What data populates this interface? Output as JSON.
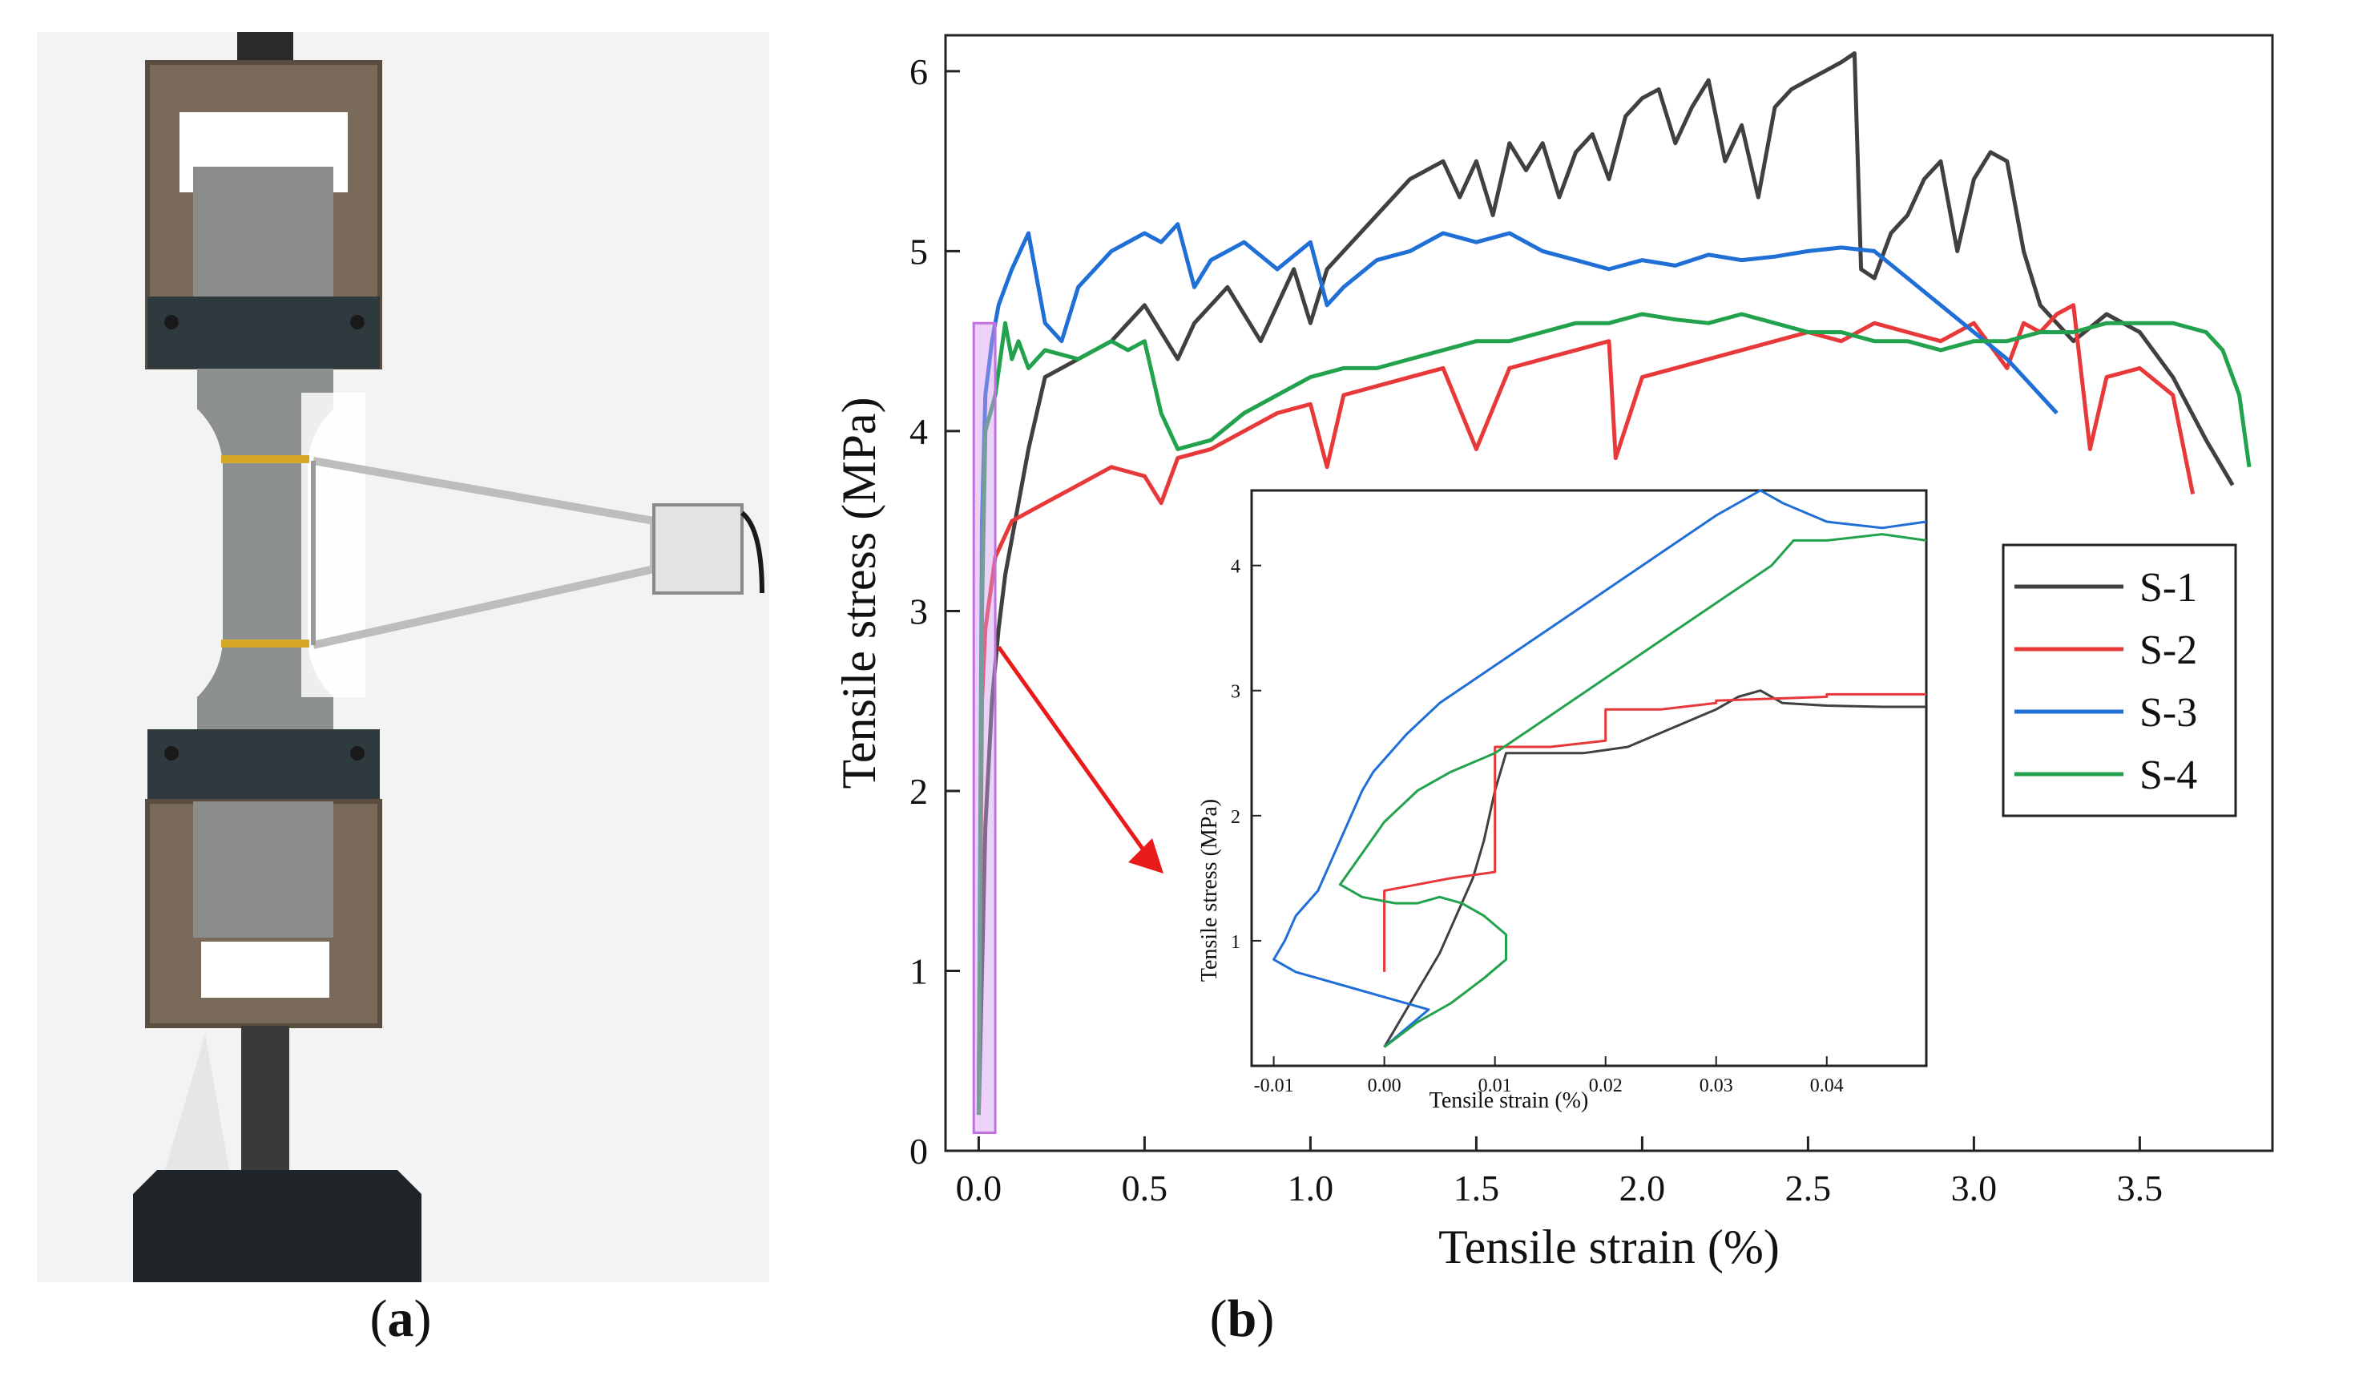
{
  "figure": {
    "caption_a": "a",
    "caption_b": "b"
  },
  "photo": {
    "description_label": "Tensile test setup photograph"
  },
  "colors": {
    "s1": "#404040",
    "s2": "#e8393a",
    "s3": "#1f6fd6",
    "s4": "#23a24d",
    "highlight": "#d59bf0",
    "arrow": "#e81a1a"
  },
  "chart_data": [
    {
      "type": "line",
      "xlabel": "Tensile strain (%)",
      "ylabel": "Tensile stress (MPa)",
      "xlim": [
        -0.1,
        3.9
      ],
      "ylim": [
        0,
        6.2
      ],
      "xticks": [
        "0.0",
        "0.5",
        "1.0",
        "1.5",
        "2.0",
        "2.5",
        "3.0",
        "3.5"
      ],
      "xtick_values": [
        0,
        0.5,
        1.0,
        1.5,
        2.0,
        2.5,
        3.0,
        3.5
      ],
      "yticks": [
        "0",
        "1",
        "2",
        "3",
        "4",
        "5",
        "6"
      ],
      "ytick_values": [
        0,
        1,
        2,
        3,
        4,
        5,
        6
      ],
      "legend": [
        "S-1",
        "S-2",
        "S-3",
        "S-4"
      ],
      "legend_position": "right",
      "series": [
        {
          "name": "S-1",
          "x": [
            0,
            0.02,
            0.04,
            0.06,
            0.08,
            0.1,
            0.15,
            0.2,
            0.3,
            0.4,
            0.5,
            0.6,
            0.65,
            0.75,
            0.85,
            0.95,
            1.0,
            1.05,
            1.1,
            1.2,
            1.3,
            1.4,
            1.45,
            1.5,
            1.55,
            1.6,
            1.65,
            1.7,
            1.75,
            1.8,
            1.85,
            1.9,
            1.95,
            2.0,
            2.05,
            2.1,
            2.15,
            2.2,
            2.25,
            2.3,
            2.35,
            2.4,
            2.45,
            2.5,
            2.55,
            2.6,
            2.64,
            2.66,
            2.7,
            2.75,
            2.8,
            2.85,
            2.9,
            2.95,
            3.0,
            3.05,
            3.1,
            3.15,
            3.2,
            3.3,
            3.4,
            3.5,
            3.6,
            3.7,
            3.78
          ],
          "y": [
            0.2,
            1.8,
            2.5,
            2.9,
            3.2,
            3.4,
            3.9,
            4.3,
            4.4,
            4.5,
            4.7,
            4.4,
            4.6,
            4.8,
            4.5,
            4.9,
            4.6,
            4.9,
            5.0,
            5.2,
            5.4,
            5.5,
            5.3,
            5.5,
            5.2,
            5.6,
            5.45,
            5.6,
            5.3,
            5.55,
            5.65,
            5.4,
            5.75,
            5.85,
            5.9,
            5.6,
            5.8,
            5.95,
            5.5,
            5.7,
            5.3,
            5.8,
            5.9,
            5.95,
            6.0,
            6.05,
            6.1,
            4.9,
            4.85,
            5.1,
            5.2,
            5.4,
            5.5,
            5.0,
            5.4,
            5.55,
            5.5,
            5.0,
            4.7,
            4.5,
            4.65,
            4.55,
            4.3,
            3.95,
            3.7
          ]
        },
        {
          "name": "S-2",
          "x": [
            0,
            0.01,
            0.02,
            0.05,
            0.1,
            0.2,
            0.3,
            0.4,
            0.5,
            0.55,
            0.6,
            0.7,
            0.8,
            0.9,
            1.0,
            1.05,
            1.1,
            1.2,
            1.3,
            1.4,
            1.5,
            1.6,
            1.7,
            1.8,
            1.9,
            1.92,
            2.0,
            2.1,
            2.2,
            2.3,
            2.4,
            2.5,
            2.6,
            2.7,
            2.8,
            2.9,
            3.0,
            3.1,
            3.15,
            3.2,
            3.25,
            3.3,
            3.35,
            3.4,
            3.5,
            3.6,
            3.66
          ],
          "y": [
            0.3,
            2.5,
            2.9,
            3.3,
            3.5,
            3.6,
            3.7,
            3.8,
            3.75,
            3.6,
            3.85,
            3.9,
            4.0,
            4.1,
            4.15,
            3.8,
            4.2,
            4.25,
            4.3,
            4.35,
            3.9,
            4.35,
            4.4,
            4.45,
            4.5,
            3.85,
            4.3,
            4.35,
            4.4,
            4.45,
            4.5,
            4.55,
            4.5,
            4.6,
            4.55,
            4.5,
            4.6,
            4.35,
            4.6,
            4.55,
            4.65,
            4.7,
            3.9,
            4.3,
            4.35,
            4.2,
            3.65
          ]
        },
        {
          "name": "S-3",
          "x": [
            0,
            0.01,
            0.02,
            0.04,
            0.06,
            0.1,
            0.15,
            0.2,
            0.25,
            0.3,
            0.4,
            0.5,
            0.55,
            0.6,
            0.65,
            0.7,
            0.8,
            0.9,
            1.0,
            1.05,
            1.1,
            1.2,
            1.3,
            1.4,
            1.5,
            1.6,
            1.7,
            1.8,
            1.9,
            2.0,
            2.1,
            2.2,
            2.3,
            2.4,
            2.5,
            2.6,
            2.7,
            2.8,
            2.9,
            3.0,
            3.1,
            3.2,
            3.25
          ],
          "y": [
            0.2,
            3.5,
            4.2,
            4.5,
            4.7,
            4.9,
            5.1,
            4.6,
            4.5,
            4.8,
            5.0,
            5.1,
            5.05,
            5.15,
            4.8,
            4.95,
            5.05,
            4.9,
            5.05,
            4.7,
            4.8,
            4.95,
            5.0,
            5.1,
            5.05,
            5.1,
            5.0,
            4.95,
            4.9,
            4.95,
            4.92,
            4.98,
            4.95,
            4.97,
            5.0,
            5.02,
            5.0,
            4.85,
            4.7,
            4.55,
            4.4,
            4.2,
            4.1
          ]
        },
        {
          "name": "S-4",
          "x": [
            0,
            0.01,
            0.02,
            0.05,
            0.08,
            0.1,
            0.12,
            0.15,
            0.2,
            0.3,
            0.4,
            0.45,
            0.5,
            0.55,
            0.6,
            0.7,
            0.8,
            0.9,
            1.0,
            1.1,
            1.2,
            1.3,
            1.4,
            1.5,
            1.6,
            1.7,
            1.8,
            1.9,
            2.0,
            2.1,
            2.2,
            2.3,
            2.4,
            2.5,
            2.6,
            2.7,
            2.8,
            2.9,
            3.0,
            3.1,
            3.2,
            3.3,
            3.4,
            3.5,
            3.6,
            3.7,
            3.75,
            3.8,
            3.83
          ],
          "y": [
            0.2,
            3.0,
            4.0,
            4.2,
            4.6,
            4.4,
            4.5,
            4.35,
            4.45,
            4.4,
            4.5,
            4.45,
            4.5,
            4.1,
            3.9,
            3.95,
            4.1,
            4.2,
            4.3,
            4.35,
            4.35,
            4.4,
            4.45,
            4.5,
            4.5,
            4.55,
            4.6,
            4.6,
            4.65,
            4.62,
            4.6,
            4.65,
            4.6,
            4.55,
            4.55,
            4.5,
            4.5,
            4.45,
            4.5,
            4.5,
            4.55,
            4.55,
            4.6,
            4.6,
            4.6,
            4.55,
            4.45,
            4.2,
            3.8
          ]
        }
      ]
    },
    {
      "type": "line",
      "title": "inset",
      "xlabel": "Tensile strain (%)",
      "ylabel": "Tensile stress (MPa)",
      "xlim": [
        -0.012,
        0.049
      ],
      "ylim": [
        0,
        4.6
      ],
      "xticks": [
        "-0.01",
        "0.00",
        "0.01",
        "0.02",
        "0.03",
        "0.04"
      ],
      "xtick_values": [
        -0.01,
        0,
        0.01,
        0.02,
        0.03,
        0.04
      ],
      "yticks": [
        "1",
        "2",
        "3",
        "4"
      ],
      "ytick_values": [
        1,
        2,
        3,
        4
      ],
      "series": [
        {
          "name": "S-1",
          "x": [
            0.0,
            0.001,
            0.002,
            0.003,
            0.004,
            0.005,
            0.006,
            0.007,
            0.008,
            0.009,
            0.0095,
            0.01,
            0.0105,
            0.011,
            0.014,
            0.018,
            0.022,
            0.026,
            0.03,
            0.032,
            0.034,
            0.036,
            0.04,
            0.045,
            0.049
          ],
          "y": [
            0.15,
            0.3,
            0.45,
            0.6,
            0.75,
            0.9,
            1.1,
            1.3,
            1.5,
            1.8,
            2.0,
            2.2,
            2.35,
            2.5,
            2.5,
            2.5,
            2.55,
            2.7,
            2.85,
            2.95,
            3.0,
            2.9,
            2.88,
            2.87,
            2.87
          ]
        },
        {
          "name": "S-2",
          "x": [
            0.0,
            0.0,
            0.0,
            0.003,
            0.006,
            0.01,
            0.01,
            0.015,
            0.02,
            0.02,
            0.025,
            0.03,
            0.03,
            0.04,
            0.04,
            0.049
          ],
          "y": [
            0.75,
            1.2,
            1.4,
            1.45,
            1.5,
            1.55,
            2.55,
            2.55,
            2.6,
            2.85,
            2.85,
            2.9,
            2.92,
            2.95,
            2.97,
            2.97
          ]
        },
        {
          "name": "S-3",
          "x": [
            0.0,
            0.002,
            0.004,
            0.0,
            -0.004,
            -0.008,
            -0.01,
            -0.009,
            -0.008,
            -0.006,
            -0.005,
            -0.004,
            -0.003,
            -0.002,
            -0.001,
            0.0,
            0.002,
            0.005,
            0.01,
            0.015,
            0.02,
            0.025,
            0.03,
            0.034,
            0.036,
            0.04,
            0.045,
            0.049
          ],
          "y": [
            0.15,
            0.3,
            0.45,
            0.55,
            0.65,
            0.75,
            0.85,
            1.0,
            1.2,
            1.4,
            1.6,
            1.8,
            2.0,
            2.2,
            2.35,
            2.45,
            2.65,
            2.9,
            3.2,
            3.5,
            3.8,
            4.1,
            4.4,
            4.6,
            4.5,
            4.35,
            4.3,
            4.35
          ]
        },
        {
          "name": "S-4",
          "x": [
            0.0,
            0.003,
            0.006,
            0.009,
            0.011,
            0.011,
            0.009,
            0.007,
            0.005,
            0.003,
            0.001,
            -0.002,
            -0.004,
            -0.002,
            0.0,
            0.003,
            0.006,
            0.01,
            0.015,
            0.02,
            0.025,
            0.03,
            0.035,
            0.037,
            0.04,
            0.045,
            0.049
          ],
          "y": [
            0.15,
            0.35,
            0.5,
            0.7,
            0.85,
            1.05,
            1.2,
            1.3,
            1.35,
            1.3,
            1.3,
            1.35,
            1.45,
            1.7,
            1.95,
            2.2,
            2.35,
            2.5,
            2.8,
            3.1,
            3.4,
            3.7,
            4.0,
            4.2,
            4.2,
            4.25,
            4.2
          ]
        }
      ]
    }
  ]
}
